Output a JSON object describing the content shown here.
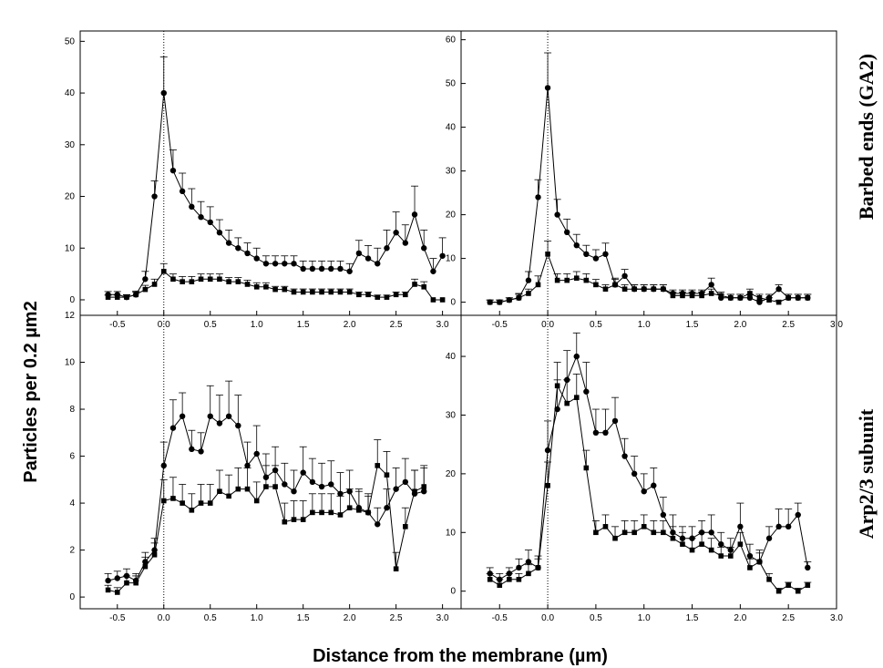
{
  "figure": {
    "ylabel": "Particles per 0.2 µm2",
    "xlabel": "Distance from the membrane (µm)",
    "row_labels": [
      "Barbed ends (GA2)",
      "Arp2/3 subunit"
    ]
  },
  "chart_data": [
    {
      "id": "p00",
      "type": "line",
      "xlim": [
        -0.9,
        3.2
      ],
      "ylim": [
        -3,
        52
      ],
      "xticks": [
        "-0.5",
        "0.0",
        "0.5",
        "1.0",
        "1.5",
        "2.0",
        "2.5",
        "3.0"
      ],
      "yticks": [
        "0",
        "10",
        "20",
        "30",
        "40",
        "50"
      ],
      "series": [
        {
          "marker": "circle",
          "x": [
            -0.6,
            -0.5,
            -0.4,
            -0.3,
            -0.2,
            -0.1,
            0.0,
            0.1,
            0.2,
            0.3,
            0.4,
            0.5,
            0.6,
            0.7,
            0.8,
            0.9,
            1.0,
            1.1,
            1.2,
            1.3,
            1.4,
            1.5,
            1.6,
            1.7,
            1.8,
            1.9,
            2.0,
            2.1,
            2.2,
            2.3,
            2.4,
            2.5,
            2.6,
            2.7,
            2.8,
            2.9,
            3.0
          ],
          "y": [
            1,
            1,
            0.5,
            1,
            4,
            20,
            40,
            25,
            21,
            18,
            16,
            15,
            13,
            11,
            10,
            9,
            8,
            7,
            7,
            7,
            7,
            6,
            6,
            6,
            6,
            6,
            5.5,
            9,
            8,
            7,
            10,
            13,
            11,
            16.5,
            10,
            5.5,
            8.5
          ],
          "err": [
            0.6,
            0.6,
            0.5,
            0.7,
            1.5,
            3,
            7,
            4,
            3.5,
            3.5,
            3,
            3,
            2.5,
            2.5,
            2,
            2,
            2,
            1.5,
            1.5,
            1.5,
            1.5,
            1.5,
            1.5,
            1.5,
            1.5,
            1.5,
            1.5,
            2.5,
            2.5,
            3,
            3.5,
            4,
            3.5,
            5.5,
            3.5,
            2.5,
            3.5
          ]
        },
        {
          "marker": "square",
          "x": [
            -0.6,
            -0.5,
            -0.4,
            -0.3,
            -0.2,
            -0.1,
            0.0,
            0.1,
            0.2,
            0.3,
            0.4,
            0.5,
            0.6,
            0.7,
            0.8,
            0.9,
            1.0,
            1.1,
            1.2,
            1.3,
            1.4,
            1.5,
            1.6,
            1.7,
            1.8,
            1.9,
            2.0,
            2.1,
            2.2,
            2.3,
            2.4,
            2.5,
            2.6,
            2.7,
            2.8,
            2.9,
            3.0
          ],
          "y": [
            0.5,
            0.5,
            0.5,
            1,
            2,
            3,
            5.5,
            4,
            3.5,
            3.5,
            4,
            4,
            4,
            3.5,
            3.5,
            3,
            2.5,
            2.5,
            2,
            2,
            1.5,
            1.5,
            1.5,
            1.5,
            1.5,
            1.5,
            1.5,
            1,
            1,
            0.5,
            0.5,
            1,
            1,
            3,
            2.5,
            0,
            0
          ],
          "err": [
            0.4,
            0.4,
            0.4,
            0.5,
            0.8,
            1,
            1.5,
            1,
            1,
            1,
            1,
            1,
            1,
            0.8,
            0.8,
            0.8,
            0.8,
            0.8,
            0.6,
            0.6,
            0.6,
            0.6,
            0.6,
            0.6,
            0.6,
            0.6,
            0.6,
            0.5,
            0.5,
            0.4,
            0.4,
            0.5,
            0.5,
            1,
            1,
            0,
            0
          ]
        }
      ]
    },
    {
      "id": "p01",
      "type": "line",
      "xlim": [
        -0.9,
        3.0
      ],
      "ylim": [
        -3,
        62
      ],
      "xticks": [
        "-0.5",
        "0.0",
        "0.5",
        "1.0",
        "1.5",
        "2.0",
        "2.5",
        "3.0"
      ],
      "yticks": [
        "0",
        "10",
        "20",
        "30",
        "40",
        "50",
        "60"
      ],
      "series": [
        {
          "marker": "circle",
          "x": [
            -0.6,
            -0.5,
            -0.4,
            -0.3,
            -0.2,
            -0.1,
            0.0,
            0.1,
            0.2,
            0.3,
            0.4,
            0.5,
            0.6,
            0.7,
            0.8,
            0.9,
            1.0,
            1.1,
            1.2,
            1.3,
            1.4,
            1.5,
            1.6,
            1.7,
            1.8,
            1.9,
            2.0,
            2.1,
            2.2,
            2.3,
            2.4,
            2.5,
            2.6,
            2.7
          ],
          "y": [
            0,
            0,
            0.5,
            1,
            5,
            24,
            49,
            20,
            16,
            13,
            11,
            10,
            11,
            4,
            6,
            3,
            3,
            3,
            3,
            2,
            2,
            2,
            2,
            4,
            1,
            1,
            1,
            1,
            0,
            1,
            3,
            1,
            1,
            1
          ],
          "err": [
            0.5,
            0.5,
            0.5,
            1,
            2,
            4,
            8,
            3.5,
            3,
            2.5,
            2,
            2,
            2.5,
            1.5,
            1.5,
            1,
            1,
            1,
            1,
            0.8,
            0.8,
            0.8,
            0.8,
            1.5,
            0.8,
            0.8,
            0.8,
            0.8,
            0.5,
            0.8,
            1,
            0.8,
            0.8,
            0.8
          ]
        },
        {
          "marker": "square",
          "x": [
            -0.6,
            -0.5,
            -0.4,
            -0.3,
            -0.2,
            -0.1,
            0.0,
            0.1,
            0.2,
            0.3,
            0.4,
            0.5,
            0.6,
            0.7,
            0.8,
            0.9,
            1.0,
            1.1,
            1.2,
            1.3,
            1.4,
            1.5,
            1.6,
            1.7,
            1.8,
            1.9,
            2.0,
            2.1,
            2.2,
            2.3,
            2.4,
            2.5,
            2.6,
            2.7
          ],
          "y": [
            0,
            0,
            0.5,
            1,
            2,
            4,
            11,
            5,
            5,
            5.5,
            5,
            4,
            3,
            4,
            3,
            3,
            3,
            3,
            3,
            1.5,
            1.5,
            1.5,
            1.5,
            2,
            1.5,
            1,
            1,
            2,
            1,
            0.5,
            0,
            1,
            1,
            1
          ],
          "err": [
            0.5,
            0.5,
            0.5,
            0.8,
            1,
            2,
            3,
            1.5,
            1.5,
            1.5,
            1.5,
            1.2,
            1,
            1.2,
            1,
            1,
            1,
            1,
            1,
            0.8,
            0.8,
            0.8,
            0.8,
            1,
            0.8,
            0.8,
            0.8,
            1,
            0.8,
            0.5,
            0.4,
            0.8,
            0.8,
            0.8
          ]
        }
      ]
    },
    {
      "id": "p10",
      "type": "line",
      "xlim": [
        -0.9,
        3.2
      ],
      "ylim": [
        -0.5,
        12
      ],
      "xticks": [
        "-0.5",
        "0.0",
        "0.5",
        "1.0",
        "1.5",
        "2.0",
        "2.5",
        "3.0"
      ],
      "yticks": [
        "0",
        "2",
        "4",
        "6",
        "8",
        "10",
        "12"
      ],
      "series": [
        {
          "marker": "circle",
          "x": [
            -0.6,
            -0.5,
            -0.4,
            -0.3,
            -0.2,
            -0.1,
            0.0,
            0.1,
            0.2,
            0.3,
            0.4,
            0.5,
            0.6,
            0.7,
            0.8,
            0.9,
            1.0,
            1.1,
            1.2,
            1.3,
            1.4,
            1.5,
            1.6,
            1.7,
            1.8,
            1.9,
            2.0,
            2.1,
            2.2,
            2.3,
            2.4,
            2.5,
            2.6,
            2.7,
            2.8
          ],
          "y": [
            0.7,
            0.8,
            0.9,
            0.7,
            1.5,
            2,
            5.6,
            7.2,
            7.7,
            6.3,
            6.2,
            7.7,
            7.4,
            7.7,
            7.3,
            5.6,
            6.1,
            5.1,
            5.4,
            4.8,
            4.5,
            5.3,
            4.9,
            4.7,
            4.8,
            4.4,
            4.5,
            3.8,
            3.6,
            3.1,
            3.8,
            4.6,
            4.9,
            4.4,
            4.5
          ],
          "err": [
            0.3,
            0.3,
            0.3,
            0.3,
            0.4,
            0.5,
            1,
            1.2,
            1,
            0.8,
            0.8,
            1.3,
            1.2,
            1.5,
            1.3,
            1,
            1.2,
            1,
            1,
            0.9,
            0.9,
            1.1,
            1,
            1,
            1,
            0.9,
            0.9,
            0.8,
            0.7,
            0.7,
            0.8,
            0.9,
            1,
            1,
            1
          ]
        },
        {
          "marker": "square",
          "x": [
            -0.6,
            -0.5,
            -0.4,
            -0.3,
            -0.2,
            -0.1,
            0.0,
            0.1,
            0.2,
            0.3,
            0.4,
            0.5,
            0.6,
            0.7,
            0.8,
            0.9,
            1.0,
            1.1,
            1.2,
            1.3,
            1.4,
            1.5,
            1.6,
            1.7,
            1.8,
            1.9,
            2.0,
            2.1,
            2.2,
            2.3,
            2.4,
            2.5,
            2.6,
            2.7,
            2.8
          ],
          "y": [
            0.3,
            0.2,
            0.6,
            0.6,
            1.3,
            1.8,
            4.1,
            4.2,
            4,
            3.7,
            4,
            4,
            4.5,
            4.3,
            4.6,
            4.6,
            4.1,
            4.7,
            4.7,
            3.2,
            3.3,
            3.3,
            3.6,
            3.6,
            3.6,
            3.5,
            3.8,
            3.7,
            3.6,
            5.6,
            5.2,
            1.2,
            3.0,
            4.5,
            4.7
          ],
          "err": [
            0.2,
            0.2,
            0.3,
            0.3,
            0.4,
            0.5,
            0.9,
            0.9,
            0.8,
            0.7,
            0.8,
            0.8,
            0.9,
            0.9,
            0.9,
            0.9,
            0.8,
            0.9,
            0.9,
            0.8,
            0.8,
            0.8,
            0.8,
            0.8,
            0.8,
            0.8,
            0.8,
            0.8,
            0.8,
            1.1,
            1,
            0.7,
            0.8,
            0.9,
            0.9
          ]
        }
      ]
    },
    {
      "id": "p11",
      "type": "line",
      "xlim": [
        -0.9,
        3.0
      ],
      "ylim": [
        -3,
        47
      ],
      "xticks": [
        "-0.5",
        "0.0",
        "0.5",
        "1.0",
        "1.5",
        "2.0",
        "2.5",
        "3.0"
      ],
      "yticks": [
        "0",
        "10",
        "20",
        "30",
        "40"
      ],
      "series": [
        {
          "marker": "circle",
          "x": [
            -0.6,
            -0.5,
            -0.4,
            -0.3,
            -0.2,
            -0.1,
            0.0,
            0.1,
            0.2,
            0.3,
            0.4,
            0.5,
            0.6,
            0.7,
            0.8,
            0.9,
            1.0,
            1.1,
            1.2,
            1.3,
            1.4,
            1.5,
            1.6,
            1.7,
            1.8,
            1.9,
            2.0,
            2.1,
            2.2,
            2.3,
            2.4,
            2.5,
            2.6,
            2.7
          ],
          "y": [
            3,
            2,
            3,
            4,
            5,
            4,
            24,
            31,
            36,
            40,
            34,
            27,
            27,
            29,
            23,
            20,
            17,
            18,
            13,
            10,
            9,
            9,
            10,
            10,
            8,
            7,
            11,
            6,
            5,
            9,
            11,
            11,
            13,
            4
          ],
          "err": [
            1,
            1,
            1,
            1.5,
            2,
            2,
            5,
            5,
            5,
            4,
            5,
            4,
            4,
            4,
            3,
            3,
            3,
            3,
            3,
            3,
            2,
            2,
            2,
            3,
            2,
            2,
            4,
            2,
            2,
            2,
            3,
            3,
            2,
            1
          ]
        },
        {
          "marker": "square",
          "x": [
            -0.6,
            -0.5,
            -0.4,
            -0.3,
            -0.2,
            -0.1,
            0.0,
            0.1,
            0.2,
            0.3,
            0.4,
            0.5,
            0.6,
            0.7,
            0.8,
            0.9,
            1.0,
            1.1,
            1.2,
            1.3,
            1.4,
            1.5,
            1.6,
            1.7,
            1.8,
            1.9,
            2.0,
            2.1,
            2.2,
            2.3,
            2.4,
            2.5,
            2.6,
            2.7
          ],
          "y": [
            2,
            1,
            2,
            2,
            3,
            4,
            18,
            35,
            32,
            33,
            21,
            10,
            11,
            9,
            10,
            10,
            11,
            10,
            10,
            9,
            8,
            7,
            8,
            7,
            6,
            6,
            8,
            4,
            5,
            2,
            0,
            1,
            0,
            1
          ],
          "err": [
            1,
            1,
            1,
            1,
            1.5,
            1.5,
            4,
            4,
            4,
            4,
            3,
            2,
            2,
            2,
            2,
            2,
            2,
            2,
            2,
            2,
            2,
            2,
            2,
            2,
            1.5,
            1.5,
            2,
            1.5,
            1.5,
            1,
            0.5,
            0.5,
            0.5,
            0.5
          ]
        }
      ]
    }
  ]
}
